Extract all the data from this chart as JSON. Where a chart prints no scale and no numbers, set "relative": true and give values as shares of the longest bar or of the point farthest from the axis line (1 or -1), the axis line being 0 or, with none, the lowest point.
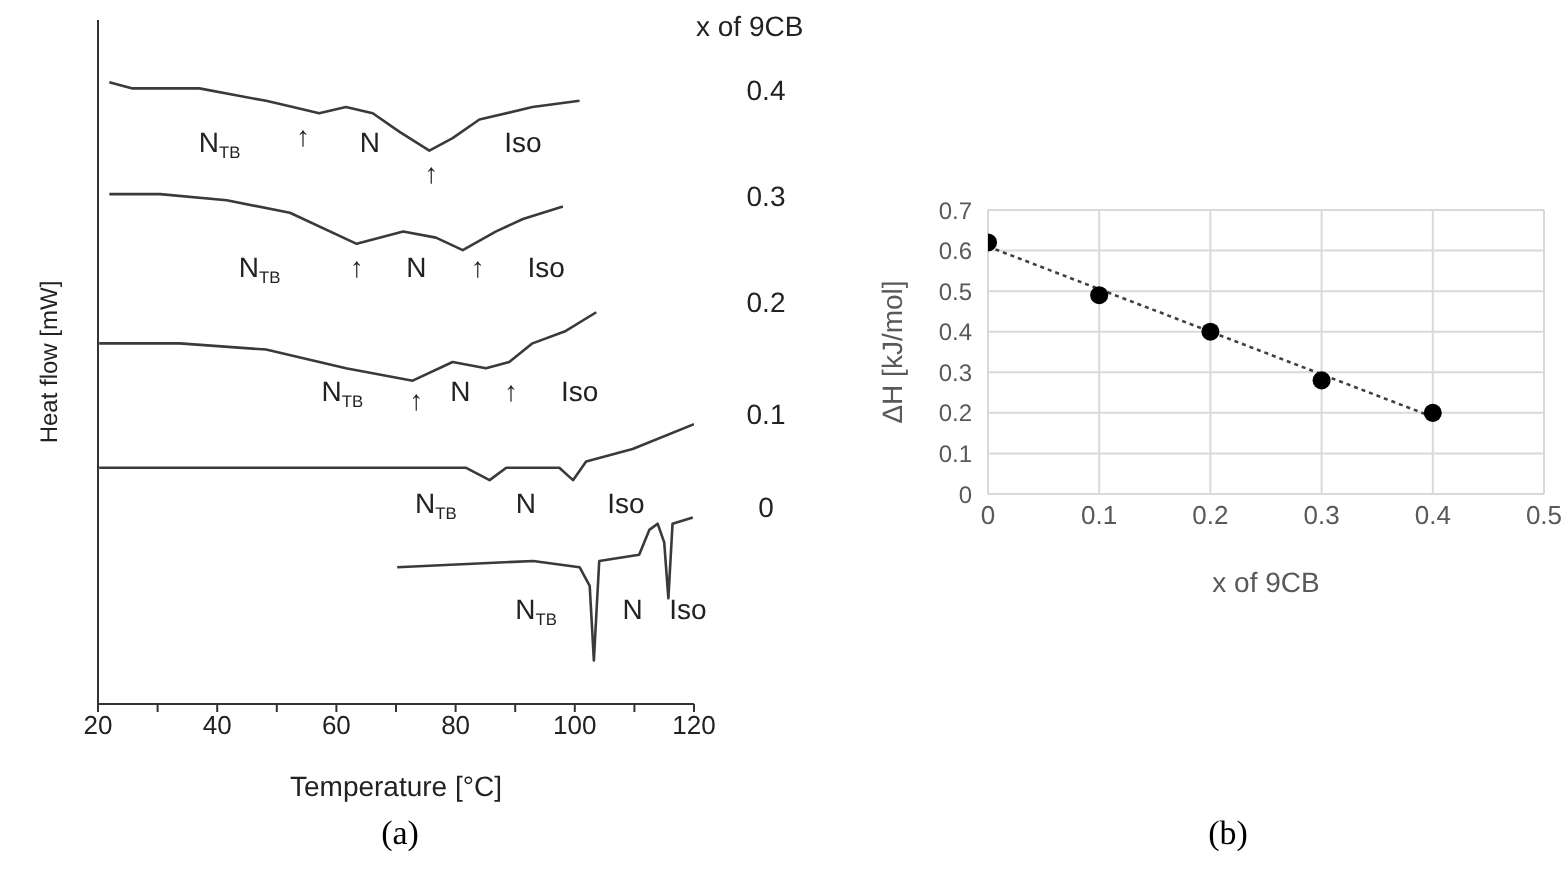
{
  "chart_data": [
    {
      "type": "line",
      "relative": true,
      "xlabel": "Temperature [°C]",
      "ylabel": "Heat flow [mW]",
      "legend_title": "x of 9CB",
      "xlim": [
        20,
        120
      ],
      "xticks": [
        20,
        {
          "value": 30,
          "label": null
        },
        40,
        {
          "value": 50,
          "label": null
        },
        60,
        {
          "value": 70,
          "label": null
        },
        80,
        {
          "value": 90,
          "label": null
        },
        100,
        {
          "value": 110,
          "label": null
        },
        120
      ],
      "tick_labels": "x",
      "marker": "none",
      "line_style": "solid",
      "series": [
        {
          "name": "0.4",
          "color": "#3a3a3a",
          "x": [
            21.9,
            25.8,
            37,
            48.2,
            52.7,
            57.1,
            61.6,
            66.1,
            70.6,
            75.6,
            79.5,
            84,
            92.9,
            100.8
          ],
          "values": [
            1.0,
            0.99,
            0.99,
            0.97,
            0.96,
            0.95,
            0.96,
            0.95,
            0.92,
            0.89,
            0.91,
            0.94,
            0.96,
            0.97
          ]
        },
        {
          "name": "0.3",
          "color": "#3a3a3a",
          "x": [
            21.9,
            30.4,
            41.6,
            52.2,
            63.4,
            71.2,
            76.7,
            81.2,
            86.8,
            91.3,
            98
          ],
          "values": [
            0.82,
            0.82,
            0.81,
            0.79,
            0.74,
            0.76,
            0.75,
            0.73,
            0.76,
            0.78,
            0.8
          ]
        },
        {
          "name": "0.2",
          "color": "#3a3a3a",
          "x": [
            20.2,
            33.7,
            48.2,
            61.6,
            72.8,
            79.5,
            85.1,
            89,
            92.9,
            98.5,
            103.6
          ],
          "values": [
            0.58,
            0.58,
            0.57,
            0.54,
            0.52,
            0.55,
            0.54,
            0.55,
            0.58,
            0.6,
            0.63
          ]
        },
        {
          "name": "0.1",
          "color": "#3a3a3a",
          "x": [
            20.2,
            37,
            59.4,
            81.7,
            85.7,
            88.5,
            97.4,
            99.7,
            101.9,
            109.7,
            120
          ],
          "values": [
            0.38,
            0.38,
            0.38,
            0.38,
            0.36,
            0.38,
            0.38,
            0.36,
            0.39,
            0.41,
            0.45
          ]
        },
        {
          "name": "0",
          "color": "#3a3a3a",
          "x": [
            70.2,
            93,
            100.8,
            102.5,
            103.2,
            104.1,
            110.8,
            112.5,
            113.9,
            115,
            115.7,
            116.4,
            119.8
          ],
          "values": [
            0.22,
            0.23,
            0.22,
            0.19,
            0.07,
            0.23,
            0.24,
            0.28,
            0.29,
            0.26,
            0.17,
            0.29,
            0.3
          ]
        }
      ],
      "annotations": [
        "N$_{TB}$",
        "↑",
        "N",
        "↑",
        "Iso",
        "N$_{TB}$",
        "↑",
        "N",
        "↑",
        "Iso",
        "N$_{TB}$",
        "↑",
        "N",
        "↑",
        "Iso",
        "N$_{TB}$",
        "N",
        "Iso",
        "N$_{TB}$",
        "N",
        "Iso",
        "(a)"
      ]
    },
    {
      "type": "scatter",
      "xlabel": "x of 9CB",
      "ylabel": "ΔH [kJ/mol]",
      "xlim": [
        0,
        0.5
      ],
      "xticks": [
        0,
        0.1,
        0.2,
        0.3,
        0.4,
        0.5
      ],
      "ylim": [
        0,
        0.7
      ],
      "yticks": [
        0,
        0.1,
        0.2,
        0.3,
        0.4,
        0.5,
        0.6,
        0.7
      ],
      "grid": true,
      "series": [
        {
          "type": "scatter",
          "marker": "circle",
          "color": "#000000",
          "x": [
            0,
            0.1,
            0.2,
            0.3,
            0.4
          ],
          "values": [
            0.62,
            0.49,
            0.4,
            0.28,
            0.2
          ]
        },
        {
          "type": "line",
          "marker": "none",
          "line_style": "dotted",
          "color": "#404040",
          "x": [
            0,
            0.4
          ],
          "values": [
            0.61,
            0.19
          ]
        }
      ],
      "annotations": [
        "(b)"
      ]
    }
  ]
}
